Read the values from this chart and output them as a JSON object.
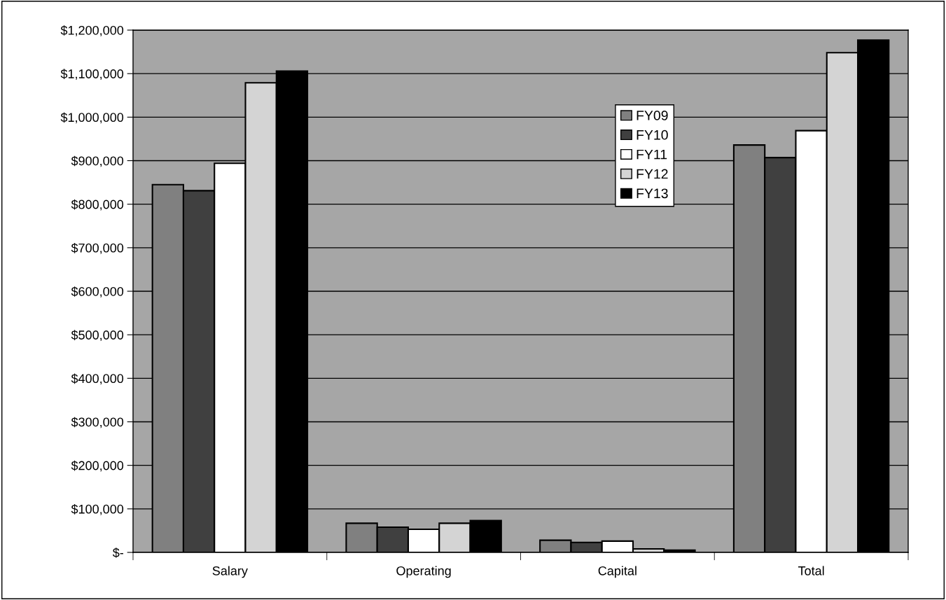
{
  "chart_data": {
    "type": "bar",
    "categories": [
      "Salary",
      "Operating",
      "Capital",
      "Total"
    ],
    "series": [
      {
        "name": "FY09",
        "color": "#808080",
        "values": [
          845000,
          67000,
          28000,
          936000
        ]
      },
      {
        "name": "FY10",
        "color": "#404040",
        "values": [
          831000,
          58000,
          23000,
          907000
        ]
      },
      {
        "name": "FY11",
        "color": "#ffffff",
        "values": [
          894000,
          53000,
          26000,
          969000
        ]
      },
      {
        "name": "FY12",
        "color": "#d4d4d4",
        "values": [
          1079000,
          67000,
          8000,
          1148000
        ]
      },
      {
        "name": "FY13",
        "color": "#000000",
        "values": [
          1106000,
          73000,
          5000,
          1177000
        ]
      }
    ],
    "ylim": [
      0,
      1200000
    ],
    "yticks": [
      {
        "value": 0,
        "label": "$-"
      },
      {
        "value": 100000,
        "label": "$100,000"
      },
      {
        "value": 200000,
        "label": "$200,000"
      },
      {
        "value": 300000,
        "label": "$300,000"
      },
      {
        "value": 400000,
        "label": "$400,000"
      },
      {
        "value": 500000,
        "label": "$500,000"
      },
      {
        "value": 600000,
        "label": "$600,000"
      },
      {
        "value": 700000,
        "label": "$700,000"
      },
      {
        "value": 800000,
        "label": "$800,000"
      },
      {
        "value": 900000,
        "label": "$900,000"
      },
      {
        "value": 1000000,
        "label": "$1,000,000"
      },
      {
        "value": 1100000,
        "label": "$1,100,000"
      },
      {
        "value": 1200000,
        "label": "$1,200,000"
      }
    ],
    "grid": "y",
    "legend": "top"
  }
}
